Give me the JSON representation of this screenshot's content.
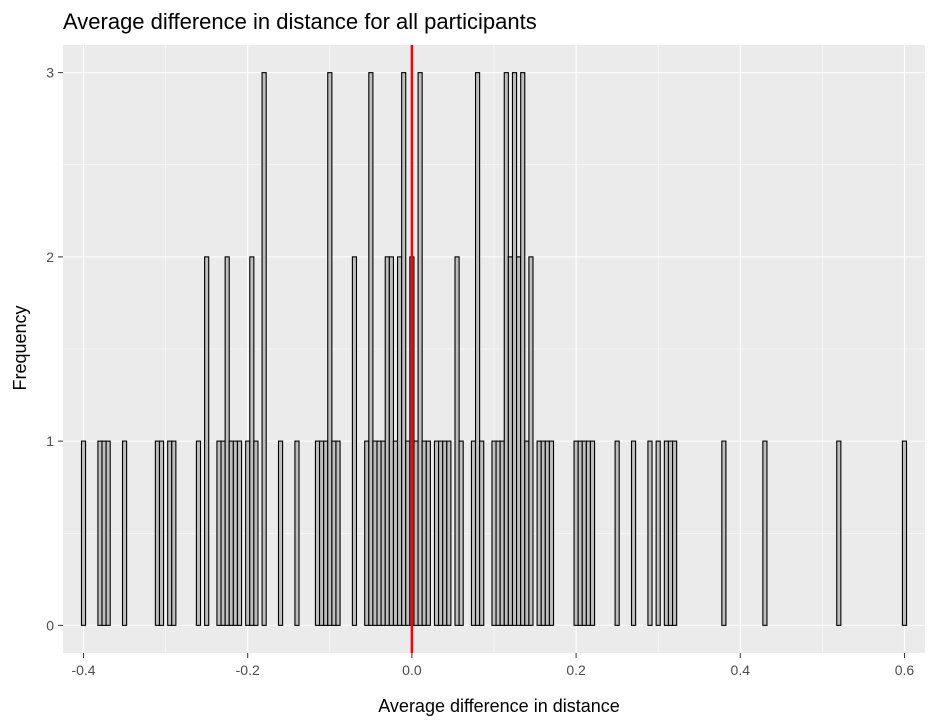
{
  "chart_data": {
    "type": "bar",
    "subtype": "histogram",
    "title": "Average difference in distance for all participants",
    "xlabel": "Average difference in distance",
    "ylabel": "Frequency",
    "xlim": [
      -0.425,
      0.625
    ],
    "ylim": [
      -0.15,
      3.15
    ],
    "bin_width": 0.005,
    "x_ticks": [
      -0.4,
      -0.2,
      0.0,
      0.2,
      0.4,
      0.6
    ],
    "x_tick_labels": [
      "-0.4",
      "-0.2",
      "0.0",
      "0.2",
      "0.4",
      "0.6"
    ],
    "y_ticks": [
      0,
      1,
      2,
      3
    ],
    "y_tick_labels": [
      "0",
      "1",
      "2",
      "3"
    ],
    "reference_line": {
      "x": 0.0,
      "color": "#ff0000"
    },
    "grid": true,
    "bins": [
      {
        "x": -0.4,
        "count": 1
      },
      {
        "x": -0.395,
        "count": 0
      },
      {
        "x": -0.39,
        "count": 0
      },
      {
        "x": -0.385,
        "count": 0
      },
      {
        "x": -0.38,
        "count": 1
      },
      {
        "x": -0.375,
        "count": 1
      },
      {
        "x": -0.37,
        "count": 1
      },
      {
        "x": -0.365,
        "count": 0
      },
      {
        "x": -0.36,
        "count": 0
      },
      {
        "x": -0.355,
        "count": 0
      },
      {
        "x": -0.35,
        "count": 1
      },
      {
        "x": -0.345,
        "count": 0
      },
      {
        "x": -0.34,
        "count": 0
      },
      {
        "x": -0.335,
        "count": 0
      },
      {
        "x": -0.33,
        "count": 0
      },
      {
        "x": -0.325,
        "count": 0
      },
      {
        "x": -0.32,
        "count": 0
      },
      {
        "x": -0.315,
        "count": 0
      },
      {
        "x": -0.31,
        "count": 1
      },
      {
        "x": -0.305,
        "count": 1
      },
      {
        "x": -0.3,
        "count": 0
      },
      {
        "x": -0.295,
        "count": 1
      },
      {
        "x": -0.29,
        "count": 1
      },
      {
        "x": -0.285,
        "count": 0
      },
      {
        "x": -0.28,
        "count": 0
      },
      {
        "x": -0.275,
        "count": 0
      },
      {
        "x": -0.27,
        "count": 0
      },
      {
        "x": -0.265,
        "count": 0
      },
      {
        "x": -0.26,
        "count": 1
      },
      {
        "x": -0.255,
        "count": 0
      },
      {
        "x": -0.25,
        "count": 2
      },
      {
        "x": -0.245,
        "count": 0
      },
      {
        "x": -0.24,
        "count": 0
      },
      {
        "x": -0.235,
        "count": 1
      },
      {
        "x": -0.23,
        "count": 1
      },
      {
        "x": -0.225,
        "count": 2
      },
      {
        "x": -0.22,
        "count": 1
      },
      {
        "x": -0.215,
        "count": 1
      },
      {
        "x": -0.21,
        "count": 1
      },
      {
        "x": -0.205,
        "count": 0
      },
      {
        "x": -0.2,
        "count": 1
      },
      {
        "x": -0.195,
        "count": 2
      },
      {
        "x": -0.19,
        "count": 1
      },
      {
        "x": -0.185,
        "count": 0
      },
      {
        "x": -0.18,
        "count": 3
      },
      {
        "x": -0.175,
        "count": 0
      },
      {
        "x": -0.17,
        "count": 0
      },
      {
        "x": -0.165,
        "count": 0
      },
      {
        "x": -0.16,
        "count": 1
      },
      {
        "x": -0.155,
        "count": 0
      },
      {
        "x": -0.15,
        "count": 0
      },
      {
        "x": -0.145,
        "count": 0
      },
      {
        "x": -0.14,
        "count": 1
      },
      {
        "x": -0.135,
        "count": 0
      },
      {
        "x": -0.13,
        "count": 0
      },
      {
        "x": -0.125,
        "count": 0
      },
      {
        "x": -0.12,
        "count": 0
      },
      {
        "x": -0.115,
        "count": 1
      },
      {
        "x": -0.11,
        "count": 1
      },
      {
        "x": -0.105,
        "count": 1
      },
      {
        "x": -0.1,
        "count": 3
      },
      {
        "x": -0.095,
        "count": 1
      },
      {
        "x": -0.09,
        "count": 1
      },
      {
        "x": -0.085,
        "count": 0
      },
      {
        "x": -0.08,
        "count": 0
      },
      {
        "x": -0.075,
        "count": 0
      },
      {
        "x": -0.07,
        "count": 2
      },
      {
        "x": -0.065,
        "count": 0
      },
      {
        "x": -0.06,
        "count": 0
      },
      {
        "x": -0.055,
        "count": 1
      },
      {
        "x": -0.05,
        "count": 3
      },
      {
        "x": -0.045,
        "count": 1
      },
      {
        "x": -0.04,
        "count": 1
      },
      {
        "x": -0.035,
        "count": 1
      },
      {
        "x": -0.03,
        "count": 2
      },
      {
        "x": -0.025,
        "count": 2
      },
      {
        "x": -0.02,
        "count": 1
      },
      {
        "x": -0.015,
        "count": 2
      },
      {
        "x": -0.01,
        "count": 3
      },
      {
        "x": -0.005,
        "count": 1
      },
      {
        "x": 0.0,
        "count": 2
      },
      {
        "x": 0.005,
        "count": 1
      },
      {
        "x": 0.01,
        "count": 3
      },
      {
        "x": 0.015,
        "count": 1
      },
      {
        "x": 0.02,
        "count": 1
      },
      {
        "x": 0.025,
        "count": 0
      },
      {
        "x": 0.03,
        "count": 1
      },
      {
        "x": 0.035,
        "count": 1
      },
      {
        "x": 0.04,
        "count": 1
      },
      {
        "x": 0.045,
        "count": 1
      },
      {
        "x": 0.05,
        "count": 0
      },
      {
        "x": 0.055,
        "count": 2
      },
      {
        "x": 0.06,
        "count": 1
      },
      {
        "x": 0.065,
        "count": 0
      },
      {
        "x": 0.07,
        "count": 0
      },
      {
        "x": 0.075,
        "count": 1
      },
      {
        "x": 0.08,
        "count": 3
      },
      {
        "x": 0.085,
        "count": 1
      },
      {
        "x": 0.09,
        "count": 0
      },
      {
        "x": 0.095,
        "count": 0
      },
      {
        "x": 0.1,
        "count": 1
      },
      {
        "x": 0.105,
        "count": 1
      },
      {
        "x": 0.11,
        "count": 1
      },
      {
        "x": 0.115,
        "count": 3
      },
      {
        "x": 0.12,
        "count": 2
      },
      {
        "x": 0.125,
        "count": 3
      },
      {
        "x": 0.13,
        "count": 2
      },
      {
        "x": 0.135,
        "count": 3
      },
      {
        "x": 0.14,
        "count": 1
      },
      {
        "x": 0.145,
        "count": 2
      },
      {
        "x": 0.15,
        "count": 0
      },
      {
        "x": 0.155,
        "count": 1
      },
      {
        "x": 0.16,
        "count": 1
      },
      {
        "x": 0.165,
        "count": 1
      },
      {
        "x": 0.17,
        "count": 1
      },
      {
        "x": 0.175,
        "count": 0
      },
      {
        "x": 0.18,
        "count": 0
      },
      {
        "x": 0.185,
        "count": 0
      },
      {
        "x": 0.19,
        "count": 0
      },
      {
        "x": 0.195,
        "count": 0
      },
      {
        "x": 0.2,
        "count": 1
      },
      {
        "x": 0.205,
        "count": 1
      },
      {
        "x": 0.21,
        "count": 1
      },
      {
        "x": 0.215,
        "count": 1
      },
      {
        "x": 0.22,
        "count": 1
      },
      {
        "x": 0.225,
        "count": 0
      },
      {
        "x": 0.23,
        "count": 0
      },
      {
        "x": 0.235,
        "count": 0
      },
      {
        "x": 0.24,
        "count": 0
      },
      {
        "x": 0.245,
        "count": 0
      },
      {
        "x": 0.25,
        "count": 1
      },
      {
        "x": 0.255,
        "count": 0
      },
      {
        "x": 0.26,
        "count": 0
      },
      {
        "x": 0.265,
        "count": 0
      },
      {
        "x": 0.27,
        "count": 1
      },
      {
        "x": 0.275,
        "count": 0
      },
      {
        "x": 0.28,
        "count": 0
      },
      {
        "x": 0.285,
        "count": 0
      },
      {
        "x": 0.29,
        "count": 1
      },
      {
        "x": 0.295,
        "count": 0
      },
      {
        "x": 0.3,
        "count": 1
      },
      {
        "x": 0.305,
        "count": 0
      },
      {
        "x": 0.31,
        "count": 1
      },
      {
        "x": 0.315,
        "count": 1
      },
      {
        "x": 0.32,
        "count": 1
      },
      {
        "x": 0.325,
        "count": 0
      },
      {
        "x": 0.33,
        "count": 0
      },
      {
        "x": 0.335,
        "count": 0
      },
      {
        "x": 0.34,
        "count": 0
      },
      {
        "x": 0.345,
        "count": 0
      },
      {
        "x": 0.35,
        "count": 0
      },
      {
        "x": 0.355,
        "count": 0
      },
      {
        "x": 0.36,
        "count": 0
      },
      {
        "x": 0.365,
        "count": 0
      },
      {
        "x": 0.37,
        "count": 0
      },
      {
        "x": 0.375,
        "count": 0
      },
      {
        "x": 0.38,
        "count": 1
      },
      {
        "x": 0.385,
        "count": 0
      },
      {
        "x": 0.39,
        "count": 0
      },
      {
        "x": 0.395,
        "count": 0
      },
      {
        "x": 0.4,
        "count": 0
      },
      {
        "x": 0.405,
        "count": 0
      },
      {
        "x": 0.41,
        "count": 0
      },
      {
        "x": 0.415,
        "count": 0
      },
      {
        "x": 0.42,
        "count": 0
      },
      {
        "x": 0.425,
        "count": 0
      },
      {
        "x": 0.43,
        "count": 1
      },
      {
        "x": 0.435,
        "count": 0
      },
      {
        "x": 0.44,
        "count": 0
      },
      {
        "x": 0.445,
        "count": 0
      },
      {
        "x": 0.45,
        "count": 0
      },
      {
        "x": 0.455,
        "count": 0
      },
      {
        "x": 0.46,
        "count": 0
      },
      {
        "x": 0.465,
        "count": 0
      },
      {
        "x": 0.47,
        "count": 0
      },
      {
        "x": 0.475,
        "count": 0
      },
      {
        "x": 0.48,
        "count": 0
      },
      {
        "x": 0.485,
        "count": 0
      },
      {
        "x": 0.49,
        "count": 0
      },
      {
        "x": 0.495,
        "count": 0
      },
      {
        "x": 0.5,
        "count": 0
      },
      {
        "x": 0.505,
        "count": 0
      },
      {
        "x": 0.51,
        "count": 0
      },
      {
        "x": 0.515,
        "count": 0
      },
      {
        "x": 0.52,
        "count": 1
      },
      {
        "x": 0.525,
        "count": 0
      },
      {
        "x": 0.53,
        "count": 0
      },
      {
        "x": 0.535,
        "count": 0
      },
      {
        "x": 0.54,
        "count": 0
      },
      {
        "x": 0.545,
        "count": 0
      },
      {
        "x": 0.55,
        "count": 0
      },
      {
        "x": 0.555,
        "count": 0
      },
      {
        "x": 0.56,
        "count": 0
      },
      {
        "x": 0.565,
        "count": 0
      },
      {
        "x": 0.57,
        "count": 0
      },
      {
        "x": 0.575,
        "count": 0
      },
      {
        "x": 0.58,
        "count": 0
      },
      {
        "x": 0.585,
        "count": 0
      },
      {
        "x": 0.59,
        "count": 0
      },
      {
        "x": 0.595,
        "count": 0
      },
      {
        "x": 0.6,
        "count": 1
      }
    ],
    "colors": {
      "panel_background": "#ebebeb",
      "grid_major": "#ffffff",
      "bar_fill": "#bebebe",
      "bar_outline": "#000000",
      "tick_text": "#4d4d4d"
    }
  }
}
